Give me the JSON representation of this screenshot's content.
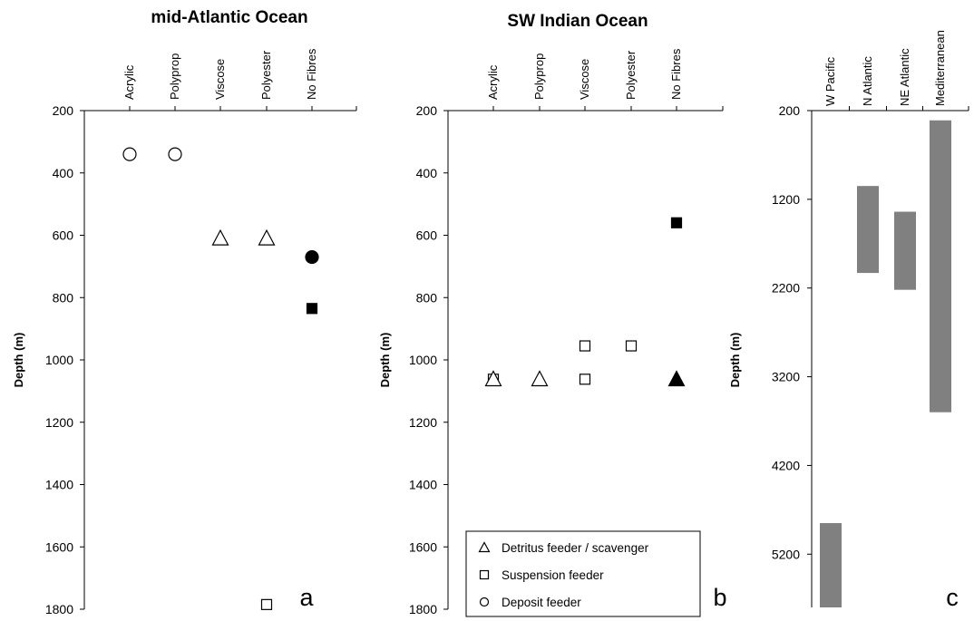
{
  "chart_data": [
    {
      "type": "scatter",
      "title": "mid-Atlantic Ocean",
      "ylabel": "Depth (m)",
      "categories": [
        "Acrylic",
        "Polyprop",
        "Viscose",
        "Polyester",
        "No Fibres"
      ],
      "ylim": [
        200,
        1800
      ],
      "y_inverted": true,
      "yticks": [
        "200",
        "400",
        "600",
        "800",
        "1000",
        "1200",
        "1400",
        "1600",
        "1800"
      ],
      "panel_label": "a",
      "points": [
        {
          "category": "Acrylic",
          "y": 340,
          "marker": "circle",
          "filled": false
        },
        {
          "category": "Polyprop",
          "y": 340,
          "marker": "circle",
          "filled": false
        },
        {
          "category": "Viscose",
          "y": 610,
          "marker": "triangle",
          "filled": false
        },
        {
          "category": "Polyester",
          "y": 610,
          "marker": "triangle",
          "filled": false
        },
        {
          "category": "No Fibres",
          "y": 670,
          "marker": "circle",
          "filled": true
        },
        {
          "category": "No Fibres",
          "y": 835,
          "marker": "square",
          "filled": true
        },
        {
          "category": "Polyester",
          "y": 1785,
          "marker": "square",
          "filled": false
        }
      ]
    },
    {
      "type": "scatter",
      "title": "SW Indian Ocean",
      "ylabel": "Depth (m)",
      "categories": [
        "Acrylic",
        "Polyprop",
        "Viscose",
        "Polyester",
        "No Fibres"
      ],
      "ylim": [
        200,
        1800
      ],
      "y_inverted": true,
      "yticks": [
        "200",
        "400",
        "600",
        "800",
        "1000",
        "1200",
        "1400",
        "1600",
        "1800"
      ],
      "panel_label": "b",
      "points": [
        {
          "category": "Acrylic",
          "y": 1062,
          "marker": "square",
          "filled": false
        },
        {
          "category": "Acrylic",
          "y": 1062,
          "marker": "triangle",
          "filled": false
        },
        {
          "category": "Polyprop",
          "y": 1062,
          "marker": "triangle",
          "filled": false
        },
        {
          "category": "Viscose",
          "y": 955,
          "marker": "square",
          "filled": false
        },
        {
          "category": "Viscose",
          "y": 1062,
          "marker": "square",
          "filled": false
        },
        {
          "category": "Polyester",
          "y": 955,
          "marker": "square",
          "filled": false
        },
        {
          "category": "No Fibres",
          "y": 560,
          "marker": "square",
          "filled": true
        },
        {
          "category": "No Fibres",
          "y": 1062,
          "marker": "triangle",
          "filled": true
        }
      ],
      "legend": {
        "placement": "bottom",
        "entries": [
          {
            "label": "Detritus feeder / scavenger",
            "marker": "triangle"
          },
          {
            "label": "Suspension feeder",
            "marker": "square"
          },
          {
            "label": "Deposit feeder",
            "marker": "circle"
          }
        ]
      }
    },
    {
      "type": "bar",
      "orientation": "floating-vertical",
      "ylabel": "Depth (m)",
      "categories": [
        "W Pacific",
        "N Atlantic",
        "NE Atlantic",
        "Mediterranean"
      ],
      "ylim": [
        200,
        5800
      ],
      "y_inverted": true,
      "yticks": [
        "200",
        "1200",
        "2200",
        "3200",
        "4200",
        "5200"
      ],
      "panel_label": "c",
      "bar_color": "#808080",
      "ranges": [
        {
          "category": "W Pacific",
          "min": 4850,
          "max": 5800
        },
        {
          "category": "N Atlantic",
          "min": 1050,
          "max": 2030
        },
        {
          "category": "NE Atlantic",
          "min": 1340,
          "max": 2220
        },
        {
          "category": "Mediterranean",
          "min": 310,
          "max": 3600
        }
      ]
    }
  ]
}
